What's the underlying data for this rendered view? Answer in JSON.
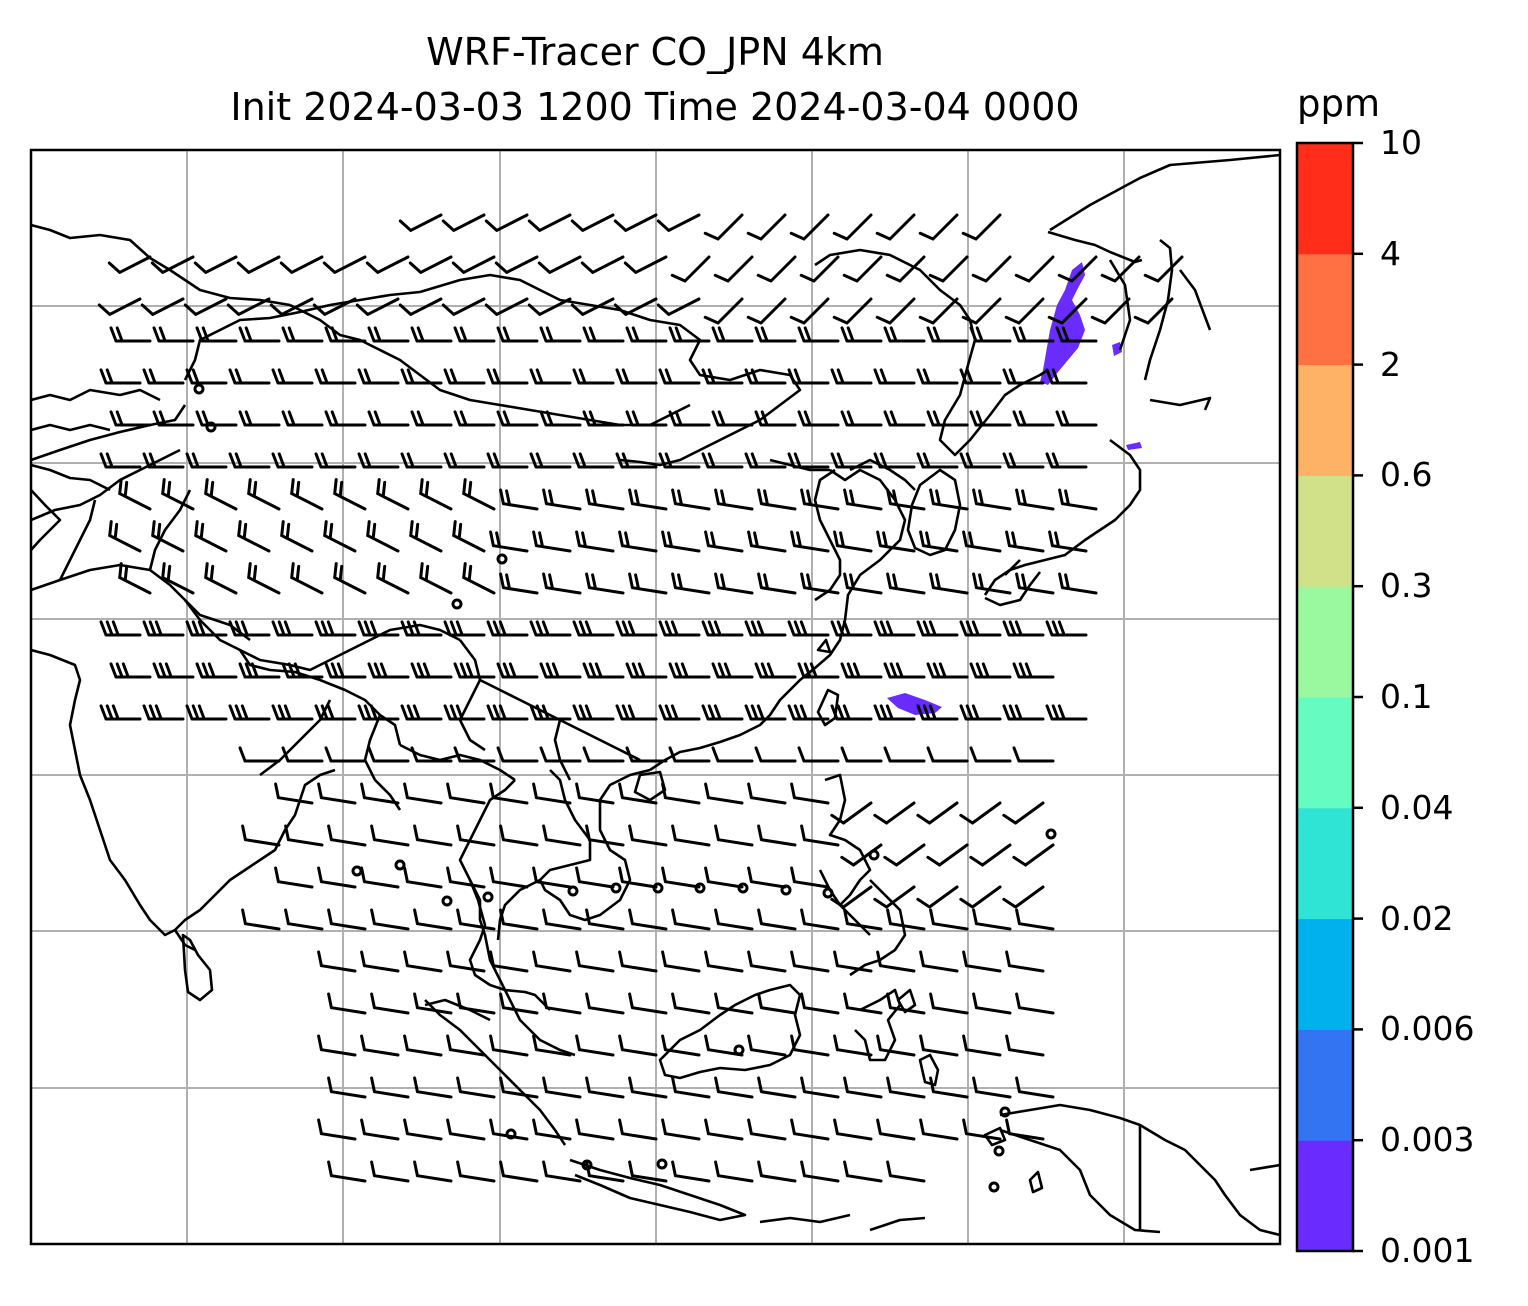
{
  "title": {
    "line1": "WRF-Tracer CO_JPN 4km",
    "line2": "Init 2024-03-03 1200 Time 2024-03-04 0000"
  },
  "colorbar": {
    "unit": "ppm",
    "levels": [
      {
        "label": "0.001",
        "color": "#6a2bff"
      },
      {
        "label": "0.003",
        "color": "#3374f3"
      },
      {
        "label": "0.006",
        "color": "#00b1ed"
      },
      {
        "label": "0.02",
        "color": "#2fe3d5"
      },
      {
        "label": "0.04",
        "color": "#66fbc1"
      },
      {
        "label": "0.1",
        "color": "#9af89e"
      },
      {
        "label": "0.3",
        "color": "#d0e18a"
      },
      {
        "label": "0.6",
        "color": "#fdb266"
      },
      {
        "label": "2",
        "color": "#ff7142"
      },
      {
        "label": "4",
        "color": "#ff2d1a"
      },
      {
        "label": "10",
        "color": null
      }
    ]
  },
  "map": {
    "features": [
      "coastlines",
      "gridlines",
      "wind-barbs",
      "tracer-contours"
    ],
    "tracer_color": "#6a2bff"
  }
}
